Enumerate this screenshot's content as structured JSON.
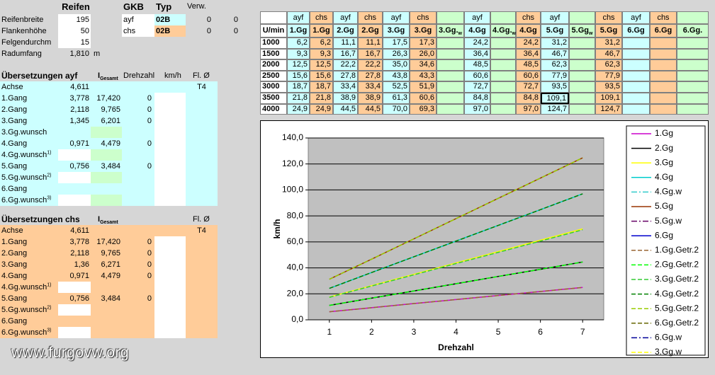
{
  "tire": {
    "title": "Reifen",
    "rows": [
      {
        "label": "Reifenbreite",
        "value": "195"
      },
      {
        "label": "Flankenhöhe",
        "value": "50"
      },
      {
        "label": "Felgendurchm",
        "value": "15"
      },
      {
        "label": "Radumfang",
        "value": "1,810",
        "unit": "m"
      }
    ]
  },
  "gkb": {
    "headers": [
      "GKB",
      "Typ",
      "Verw."
    ],
    "rows": [
      {
        "cells": [
          "ayf",
          "02B",
          "0",
          "0"
        ],
        "color": "#ccffff"
      },
      {
        "cells": [
          "chs",
          "02B",
          "0",
          "0"
        ],
        "color": "#ffcc99"
      }
    ]
  },
  "ayf": {
    "title": "Übersetzungen ayf",
    "color": "#ccffff",
    "headers": {
      "i": "I",
      "i_sub": "Gesamt",
      "rpm": "Drehzahl",
      "kmh": "km/h",
      "fl": "Fl. Ø"
    },
    "rows": [
      {
        "label": "Achse",
        "ratio": "4,611",
        "fl": "T4"
      },
      {
        "label": "1.Gang",
        "ratio": "3,778",
        "total": "17,420",
        "rpm": "0"
      },
      {
        "label": "2.Gang",
        "ratio": "2,118",
        "total": "9,765",
        "rpm": "0"
      },
      {
        "label": "3.Gang",
        "ratio": "1,345",
        "total": "6,201",
        "rpm": "0"
      },
      {
        "label": "3.Gg.wunsch",
        "total_fill": "#ccffcc"
      },
      {
        "label": "4.Gang",
        "ratio": "0,971",
        "total": "4,479",
        "rpm": "0"
      },
      {
        "label": "4.Gg.wunsch",
        "sup": "1)",
        "ratio_fill": "#ffffff",
        "total_fill": "#ccffcc"
      },
      {
        "label": "5.Gang",
        "ratio": "0,756",
        "total": "3,484",
        "rpm": "0"
      },
      {
        "label": "5.Gg.wunsch",
        "sup": "2)",
        "ratio_fill": "#ffffff",
        "total_fill": "#ccffcc"
      },
      {
        "label": "6.Gang"
      },
      {
        "label": "6.Gg.wunsch",
        "sup": "3)",
        "ratio_fill": "#ffffff",
        "total_fill": "#ccffcc"
      }
    ]
  },
  "chs": {
    "title": "Übersetzungen chs",
    "color": "#ffcc99",
    "headers": {
      "i": "I",
      "i_sub": "Gesamt",
      "fl": "Fl. Ø"
    },
    "rows": [
      {
        "label": "Achse",
        "ratio": "4,611",
        "fl": "T4"
      },
      {
        "label": "1.Gang",
        "ratio": "3,778",
        "total": "17,420",
        "rpm": "0"
      },
      {
        "label": "2.Gang",
        "ratio": "2,118",
        "total": "9,765",
        "rpm": "0"
      },
      {
        "label": "3.Gang",
        "ratio": "1,36",
        "total": "6,271",
        "rpm": "0"
      },
      {
        "label": "4.Gang",
        "ratio": "0,971",
        "total": "4,479",
        "rpm": "0"
      },
      {
        "label": "4.Gg.wunsch",
        "sup": "1)",
        "ratio_fill": "#ffffff"
      },
      {
        "label": "5.Gang",
        "ratio": "0,756",
        "total": "3,484",
        "rpm": "0"
      },
      {
        "label": "5.Gg.wunsch",
        "sup": "2)",
        "ratio_fill": "#ffffff"
      },
      {
        "label": "6.Gang"
      },
      {
        "label": "6.Gg.wunsch",
        "sup": "3)",
        "ratio_fill": "#ffffff"
      }
    ]
  },
  "speed_table": {
    "colors": [
      "#ffffff",
      "#ccffff",
      "#ffcc99",
      "#ccffff",
      "#ffcc99",
      "#ccffff",
      "#ffcc99",
      "#ccffcc",
      "#ccffff",
      "#ccffcc",
      "#ffcc99",
      "#ccffff",
      "#ccffcc",
      "#ffcc99",
      "#ccffff",
      "#ffcc99",
      "#ccffcc"
    ],
    "groups": [
      null,
      "ayf",
      "chs",
      "ayf",
      "chs",
      "ayf",
      "chs",
      null,
      "ayf",
      null,
      "chs",
      "ayf",
      null,
      "chs",
      "ayf",
      "chs",
      null
    ],
    "headers": [
      "U/min",
      "1.Gg",
      "1.Gg",
      "2.Gg",
      "2.Gg",
      "3.Gg",
      "3.Gg",
      "3.Gg.",
      "4.Gg",
      "4.Gg.",
      "4.Gg",
      "5.Gg",
      "5.Gg",
      "5.Gg",
      "6.Gg",
      "6.Gg",
      "6.Gg."
    ],
    "header_subs": [
      null,
      null,
      null,
      null,
      null,
      null,
      null,
      "w",
      null,
      "w",
      null,
      null,
      "w",
      null,
      null,
      null,
      null
    ],
    "rows": [
      [
        "1000",
        "6,2",
        "6,2",
        "11,1",
        "11,1",
        "17,5",
        "17,3",
        null,
        "24,2",
        null,
        "24,2",
        "31,2",
        null,
        "31,2",
        null,
        null,
        null
      ],
      [
        "1500",
        "9,3",
        "9,3",
        "16,7",
        "16,7",
        "26,3",
        "26,0",
        null,
        "36,4",
        null,
        "36,4",
        "46,7",
        null,
        "46,7",
        null,
        null,
        null
      ],
      [
        "2000",
        "12,5",
        "12,5",
        "22,2",
        "22,2",
        "35,0",
        "34,6",
        null,
        "48,5",
        null,
        "48,5",
        "62,3",
        null,
        "62,3",
        null,
        null,
        null
      ],
      [
        "2500",
        "15,6",
        "15,6",
        "27,8",
        "27,8",
        "43,8",
        "43,3",
        null,
        "60,6",
        null,
        "60,6",
        "77,9",
        null,
        "77,9",
        null,
        null,
        null
      ],
      [
        "3000",
        "18,7",
        "18,7",
        "33,4",
        "33,4",
        "52,5",
        "51,9",
        null,
        "72,7",
        null,
        "72,7",
        "93,5",
        null,
        "93,5",
        null,
        null,
        null
      ],
      [
        "3500",
        "21,8",
        "21,8",
        "38,9",
        "38,9",
        "61,3",
        "60,6",
        null,
        "84,8",
        null,
        "84,8",
        "109,1",
        null,
        "109,1",
        null,
        null,
        null
      ],
      [
        "4000",
        "24,9",
        "24,9",
        "44,5",
        "44,5",
        "70,0",
        "69,3",
        null,
        "97,0",
        null,
        "97,0",
        "124,7",
        null,
        "124,7",
        null,
        null,
        null
      ]
    ],
    "selected": [
      5,
      11
    ]
  },
  "chart_data": {
    "type": "line",
    "xlabel": "Drehzahl",
    "ylabel": "km/h",
    "x": [
      1,
      2,
      3,
      4,
      5,
      6,
      7
    ],
    "xlim": [
      0.5,
      7.5
    ],
    "xticks": [
      1,
      2,
      3,
      4,
      5,
      6,
      7
    ],
    "ylim": [
      0,
      140
    ],
    "yticks": [
      {
        "value": 0,
        "label": "0,0"
      },
      {
        "value": 20,
        "label": "20,0"
      },
      {
        "value": 40,
        "label": "40,0"
      },
      {
        "value": 60,
        "label": "60,0"
      },
      {
        "value": 80,
        "label": "80,0"
      },
      {
        "value": 100,
        "label": "100,0"
      },
      {
        "value": 120,
        "label": "120,0"
      },
      {
        "value": 140,
        "label": "140,0"
      }
    ],
    "grid": true,
    "legend": "right",
    "series": [
      {
        "name": "1.Gg",
        "color": "#cc00cc",
        "dash": "solid",
        "values": [
          6.2,
          9.3,
          12.5,
          15.6,
          18.7,
          21.8,
          24.9
        ]
      },
      {
        "name": "2.Gg",
        "color": "#000000",
        "dash": "solid",
        "values": [
          11.1,
          16.7,
          22.2,
          27.8,
          33.4,
          38.9,
          44.5
        ]
      },
      {
        "name": "3.Gg",
        "color": "#ffff00",
        "dash": "solid",
        "values": [
          17.5,
          26.3,
          35.0,
          43.8,
          52.5,
          61.3,
          70.0
        ]
      },
      {
        "name": "4.Gg",
        "color": "#00cccc",
        "dash": "solid",
        "values": [
          24.2,
          36.4,
          48.5,
          60.6,
          72.7,
          84.8,
          97.0
        ]
      },
      {
        "name": "4.Gg.w",
        "color": "#33cccc",
        "dash": "dashdot"
      },
      {
        "name": "5.Gg",
        "color": "#993300",
        "dash": "solid",
        "values": [
          31.2,
          46.7,
          62.3,
          77.9,
          93.5,
          109.1,
          124.7
        ]
      },
      {
        "name": "5.Gg.w",
        "color": "#660066",
        "dash": "dashdot"
      },
      {
        "name": "6.Gg",
        "color": "#0000cc",
        "dash": "solid"
      },
      {
        "name": "1.Gg.Getr.2",
        "color": "#996633",
        "dash": "dashed",
        "values": [
          6.2,
          9.3,
          12.5,
          15.6,
          18.7,
          21.8,
          24.9
        ]
      },
      {
        "name": "2.Gg.Getr.2",
        "color": "#00ff00",
        "dash": "dashed",
        "values": [
          11.1,
          16.7,
          22.2,
          27.8,
          33.4,
          38.9,
          44.5
        ]
      },
      {
        "name": "3.Gg.Getr.2",
        "color": "#33cc33",
        "dash": "dashed",
        "values": [
          17.3,
          26.0,
          34.6,
          43.3,
          51.9,
          60.6,
          69.3
        ]
      },
      {
        "name": "4.Gg.Getr.2",
        "color": "#008000",
        "dash": "dashed",
        "values": [
          24.2,
          36.4,
          48.5,
          60.6,
          72.7,
          84.8,
          97.0
        ]
      },
      {
        "name": "5.Gg.Getr.2",
        "color": "#99cc00",
        "dash": "dashed",
        "values": [
          31.2,
          46.7,
          62.3,
          77.9,
          93.5,
          109.1,
          124.7
        ]
      },
      {
        "name": "6.Gg.Getr.2",
        "color": "#666600",
        "dash": "dashed"
      },
      {
        "name": "6.Gg.w",
        "color": "#000099",
        "dash": "dashdot"
      },
      {
        "name": "3.Gg.w",
        "color": "#ffff00",
        "dash": "dashed"
      }
    ]
  },
  "footer": "www.furgovw.org"
}
